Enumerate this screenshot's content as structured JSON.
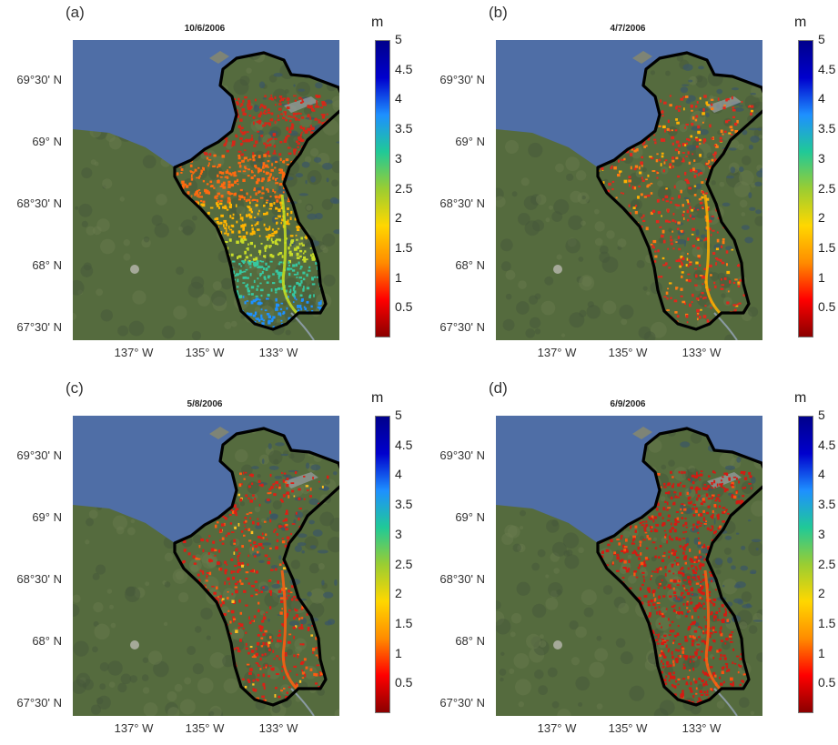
{
  "panels": [
    {
      "label": "(a)",
      "date": "10/6/2006",
      "scheme": "gradient"
    },
    {
      "label": "(b)",
      "date": "4/7/2006",
      "scheme": "low-orange"
    },
    {
      "label": "(c)",
      "date": "5/8/2006",
      "scheme": "low-red"
    },
    {
      "label": "(d)",
      "date": "6/9/2006",
      "scheme": "low-red-dense"
    }
  ],
  "y_ticks": [
    "69°30' N",
    "69° N",
    "68°30' N",
    "68° N",
    "67°30' N"
  ],
  "x_ticks": [
    "137°  W",
    "135°  W",
    "133°  W"
  ],
  "colorbar": {
    "unit": "m",
    "min": 0,
    "max": 5,
    "ticks": [
      "5",
      "4.5",
      "4",
      "3.5",
      "3",
      "2.5",
      "2",
      "1.5",
      "1",
      "0.5"
    ],
    "colors": [
      "#8b0000",
      "#ff0000",
      "#ff8c00",
      "#ffd700",
      "#9acd32",
      "#20c997",
      "#1e90ff",
      "#0000cd",
      "#00008b"
    ]
  },
  "colors": {
    "sea": "#4f6ea6",
    "land": "#556b3e",
    "boundary": "#000000"
  }
}
